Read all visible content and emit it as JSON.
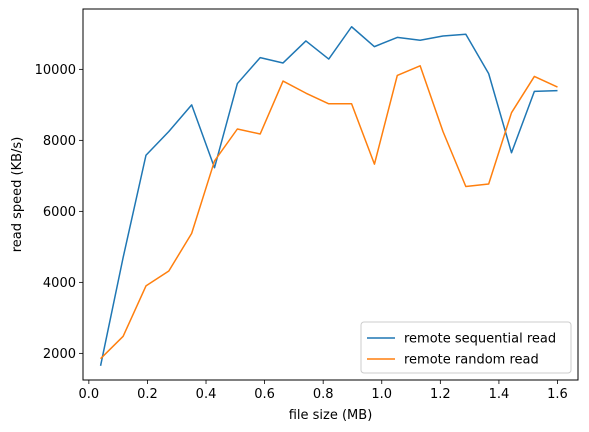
{
  "chart_data": {
    "type": "line",
    "xlabel": "file size (MB)",
    "ylabel": "read speed (KB/s)",
    "xlim": [
      -0.02,
      1.67
    ],
    "ylim": [
      1250,
      11700
    ],
    "xticks": [
      0.0,
      0.2,
      0.4,
      0.6,
      0.8,
      1.0,
      1.2,
      1.4,
      1.6
    ],
    "xtick_labels": [
      "0.0",
      "0.2",
      "0.4",
      "0.6",
      "0.8",
      "1.0",
      "1.2",
      "1.4",
      "1.6"
    ],
    "yticks": [
      2000,
      4000,
      6000,
      8000,
      10000
    ],
    "ytick_labels": [
      "2000",
      "4000",
      "6000",
      "8000",
      "10000"
    ],
    "grid": false,
    "legend_position": "lower-right",
    "series": [
      {
        "name": "remote sequential read",
        "color": "#1f77b4",
        "x": [
          0.04,
          0.117,
          0.195,
          0.273,
          0.351,
          0.429,
          0.507,
          0.585,
          0.663,
          0.741,
          0.819,
          0.897,
          0.975,
          1.053,
          1.131,
          1.209,
          1.287,
          1.365,
          1.443,
          1.521,
          1.6
        ],
        "y": [
          1650,
          4700,
          7580,
          8250,
          9000,
          7230,
          9600,
          10330,
          10180,
          10800,
          10290,
          11200,
          10640,
          10900,
          10820,
          10940,
          10990,
          9880,
          7650,
          9380,
          9400
        ]
      },
      {
        "name": "remote random read",
        "color": "#ff7f0e",
        "x": [
          0.04,
          0.117,
          0.195,
          0.273,
          0.351,
          0.429,
          0.507,
          0.585,
          0.663,
          0.741,
          0.819,
          0.897,
          0.975,
          1.053,
          1.131,
          1.209,
          1.287,
          1.365,
          1.443,
          1.521,
          1.6
        ],
        "y": [
          1850,
          2480,
          3900,
          4320,
          5380,
          7420,
          8320,
          8180,
          9670,
          9330,
          9030,
          9030,
          7330,
          9830,
          10100,
          8250,
          6700,
          6770,
          8780,
          9800,
          9500
        ]
      }
    ]
  }
}
